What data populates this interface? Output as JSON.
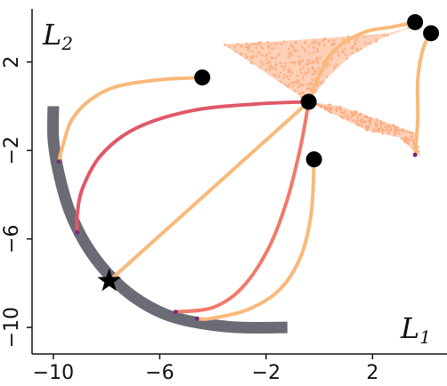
{
  "chart_data": {
    "type": "line",
    "xlabel": "L",
    "xlabel_sub": "1",
    "ylabel": "L",
    "ylabel_sub": "2",
    "xlim": [
      -10.8,
      4.8
    ],
    "ylim": [
      -11.2,
      4.4
    ],
    "x_ticks": [
      -10,
      -6,
      -2,
      2
    ],
    "y_ticks": [
      -10,
      -6,
      -2,
      2
    ],
    "x_tick_labels": [
      "−10",
      "−6",
      "−2",
      "2"
    ],
    "y_tick_labels": [
      "−10",
      "−6",
      "−2",
      "2"
    ],
    "grid": false,
    "colors": {
      "front": "#6b6b75",
      "light": "#f9b97a",
      "salmon": "#fca97c",
      "red": "#e05869",
      "coral": "#f07a6a",
      "marker": "#000000",
      "dot": "#7a2a7a"
    },
    "pareto_front": [
      [
        -10.0,
        0.0
      ],
      [
        -10.0,
        -1.5
      ],
      [
        -9.8,
        -3.0
      ],
      [
        -9.4,
        -4.7
      ],
      [
        -8.8,
        -6.2
      ],
      [
        -8.0,
        -7.5
      ],
      [
        -7.0,
        -8.6
      ],
      [
        -5.8,
        -9.4
      ],
      [
        -4.5,
        -9.8
      ],
      [
        -3.0,
        -10.0
      ],
      [
        -1.2,
        -10.0
      ]
    ],
    "star": [
      -7.9,
      -7.9
    ],
    "start_points": [
      [
        -4.4,
        1.3
      ],
      [
        -0.4,
        0.2
      ],
      [
        -0.2,
        -2.4
      ],
      [
        3.6,
        3.8
      ],
      [
        4.2,
        3.3
      ]
    ],
    "series": [
      {
        "color": "light",
        "points": [
          [
            -4.4,
            1.3
          ],
          [
            -6.0,
            1.2
          ],
          [
            -7.6,
            0.9
          ],
          [
            -8.6,
            0.3
          ],
          [
            -9.3,
            -0.6
          ],
          [
            -9.6,
            -1.6
          ],
          [
            -9.8,
            -2.5
          ]
        ]
      },
      {
        "color": "red",
        "points": [
          [
            -0.4,
            0.2
          ],
          [
            -2.4,
            0.1
          ],
          [
            -4.8,
            -0.2
          ],
          [
            -6.9,
            -1.0
          ],
          [
            -8.2,
            -2.2
          ],
          [
            -8.9,
            -3.7
          ],
          [
            -9.1,
            -4.9
          ],
          [
            -9.1,
            -5.7
          ]
        ]
      },
      {
        "color": "light",
        "points": [
          [
            -0.4,
            0.2
          ],
          [
            -7.9,
            -7.9
          ]
        ]
      },
      {
        "color": "coral",
        "points": [
          [
            -0.4,
            0.2
          ],
          [
            -0.7,
            -1.8
          ],
          [
            -1.2,
            -4.2
          ],
          [
            -1.9,
            -6.4
          ],
          [
            -2.9,
            -8.2
          ],
          [
            -4.0,
            -9.1
          ],
          [
            -5.4,
            -9.3
          ]
        ]
      },
      {
        "color": "light",
        "points": [
          [
            -0.2,
            -2.4
          ],
          [
            -0.3,
            -4.8
          ],
          [
            -0.7,
            -6.8
          ],
          [
            -1.5,
            -8.3
          ],
          [
            -2.7,
            -9.2
          ],
          [
            -4.1,
            -9.6
          ],
          [
            -4.6,
            -9.6
          ]
        ]
      },
      {
        "color": "light",
        "points": [
          [
            3.6,
            3.8
          ],
          [
            2.8,
            3.6
          ],
          [
            1.6,
            3.3
          ],
          [
            0.4,
            2.3
          ],
          [
            -0.4,
            0.2
          ]
        ]
      },
      {
        "color": "light",
        "points": [
          [
            4.2,
            3.3
          ],
          [
            3.9,
            2.6
          ],
          [
            3.7,
            1.2
          ],
          [
            3.7,
            -0.6
          ],
          [
            3.6,
            -2.2
          ]
        ]
      }
    ],
    "scatter_clouds": [
      {
        "color": "salmon",
        "polygon": [
          [
            -3.6,
            2.8
          ],
          [
            -2.0,
            2.9
          ],
          [
            0.4,
            3.1
          ],
          [
            2.6,
            3.3
          ],
          [
            3.5,
            3.6
          ],
          [
            2.4,
            3.1
          ],
          [
            1.2,
            2.3
          ],
          [
            0.3,
            1.3
          ],
          [
            -0.4,
            0.2
          ],
          [
            -1.4,
            1.0
          ],
          [
            -2.6,
            2.0
          ]
        ]
      },
      {
        "color": "salmon",
        "polygon": [
          [
            -0.4,
            0.2
          ],
          [
            0.8,
            0.0
          ],
          [
            2.2,
            -0.6
          ],
          [
            3.6,
            -1.2
          ],
          [
            3.8,
            -2.3
          ],
          [
            3.0,
            -1.4
          ],
          [
            1.8,
            -1.1
          ],
          [
            0.6,
            -0.4
          ]
        ]
      }
    ]
  }
}
